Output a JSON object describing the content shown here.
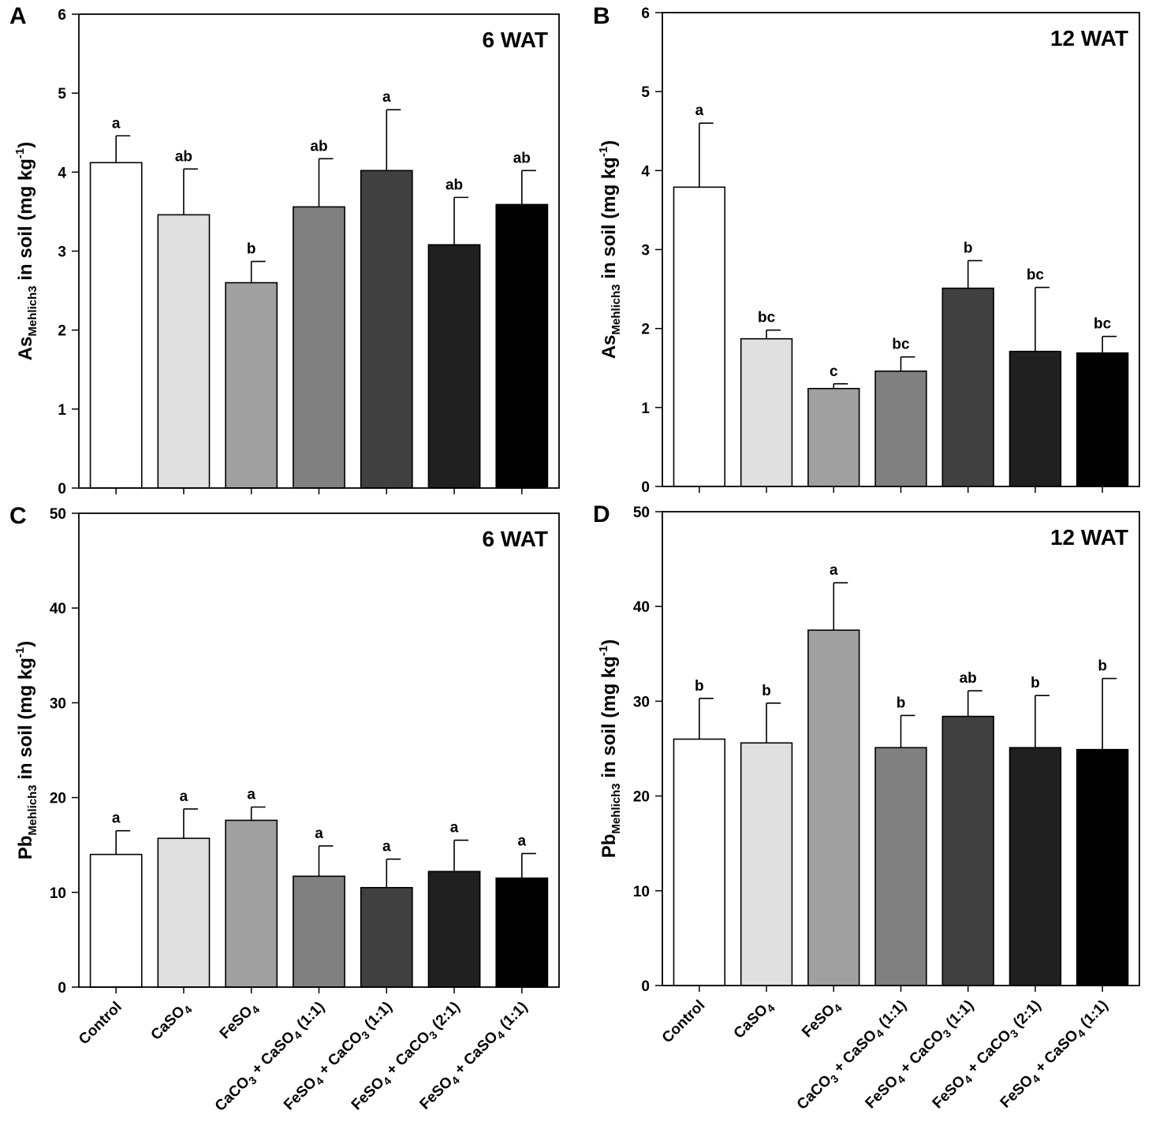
{
  "figure_labels": {
    "categories": [
      {
        "text": "Control"
      },
      {
        "text": "CaSO",
        "sub": "4"
      },
      {
        "text": "FeSO",
        "sub": "4"
      },
      {
        "text": "CaCO",
        "sub": "3",
        "text2": " + CaSO",
        "sub2": "4",
        "text3": " (1:1)"
      },
      {
        "text": "FeSO",
        "sub": "4",
        "text2": " + CaCO",
        "sub2": "3",
        "text3": " (1:1)"
      },
      {
        "text": "FeSO",
        "sub": "4",
        "text2": " + CaCO",
        "sub2": "3",
        "text3": " (2:1)"
      },
      {
        "text": "FeSO",
        "sub": "4",
        "text2": " + CaSO",
        "sub2": "4",
        "text3": " (1:1)"
      }
    ]
  },
  "colors": {
    "bar_fills": [
      "#ffffff",
      "#e0e0e0",
      "#a0a0a0",
      "#808080",
      "#404040",
      "#202020",
      "#000000"
    ],
    "stroke": "#000000"
  },
  "chart_data": [
    {
      "panel": "A",
      "type": "bar",
      "title": "6 WAT",
      "ylabel": {
        "main": "As",
        "sub": "Mehlich3",
        "rest": " in soil (mg kg",
        "sup": "-1",
        "end": ")"
      },
      "ylim": [
        0,
        6
      ],
      "yticks": [
        0,
        1,
        2,
        3,
        4,
        5,
        6
      ],
      "values": [
        4.12,
        3.46,
        2.6,
        3.56,
        4.02,
        3.08,
        3.59
      ],
      "errors": [
        0.34,
        0.58,
        0.27,
        0.61,
        0.77,
        0.6,
        0.43
      ],
      "letters": [
        "a",
        "ab",
        "b",
        "ab",
        "a",
        "ab",
        "ab"
      ]
    },
    {
      "panel": "B",
      "type": "bar",
      "title": "12 WAT",
      "ylabel": {
        "main": "As",
        "sub": "Mehlich3",
        "rest": " in soil (mg kg",
        "sup": "-1",
        "end": ")"
      },
      "ylim": [
        0,
        6
      ],
      "yticks": [
        0,
        1,
        2,
        3,
        4,
        5,
        6
      ],
      "values": [
        3.79,
        1.87,
        1.24,
        1.46,
        2.51,
        1.71,
        1.69
      ],
      "errors": [
        0.81,
        0.11,
        0.06,
        0.18,
        0.35,
        0.81,
        0.21
      ],
      "letters": [
        "a",
        "bc",
        "c",
        "bc",
        "b",
        "bc",
        "bc"
      ]
    },
    {
      "panel": "C",
      "type": "bar",
      "title": "6 WAT",
      "ylabel": {
        "main": "Pb",
        "sub": "Mehlich3",
        "rest": " in soil (mg kg",
        "sup": "-1",
        "end": ")"
      },
      "ylim": [
        0,
        50
      ],
      "yticks": [
        0,
        10,
        20,
        30,
        40,
        50
      ],
      "values": [
        14.0,
        15.7,
        17.6,
        11.7,
        10.5,
        12.2,
        11.5
      ],
      "errors": [
        2.5,
        3.1,
        1.4,
        3.2,
        3.0,
        3.3,
        2.6
      ],
      "letters": [
        "a",
        "a",
        "a",
        "a",
        "a",
        "a",
        "a"
      ]
    },
    {
      "panel": "D",
      "type": "bar",
      "title": "12 WAT",
      "ylabel": {
        "main": "Pb",
        "sub": "Mehlich3",
        "rest": " in soil (mg kg",
        "sup": "-1",
        "end": ")"
      },
      "ylim": [
        0,
        50
      ],
      "yticks": [
        0,
        10,
        20,
        30,
        40,
        50
      ],
      "values": [
        26.0,
        25.6,
        37.5,
        25.1,
        28.4,
        25.1,
        24.9
      ],
      "errors": [
        4.3,
        4.2,
        5.0,
        3.4,
        2.7,
        5.5,
        7.5
      ],
      "letters": [
        "b",
        "b",
        "a",
        "b",
        "ab",
        "b",
        "b"
      ]
    }
  ]
}
